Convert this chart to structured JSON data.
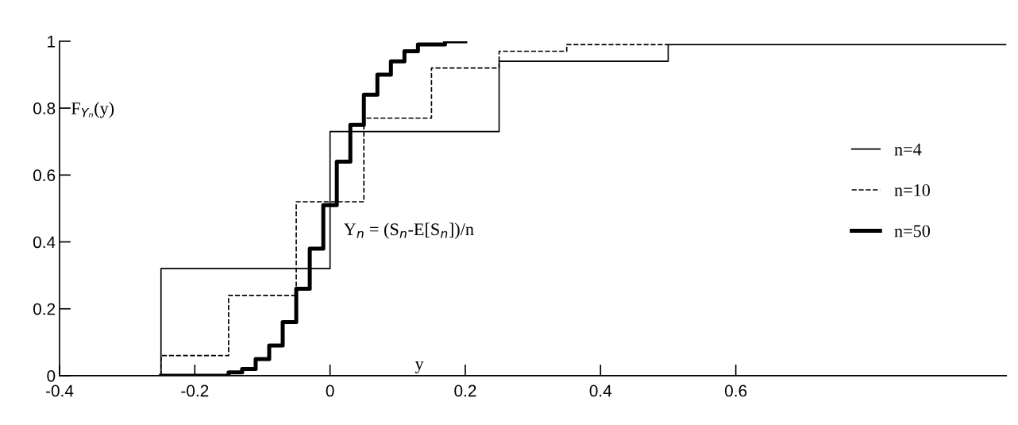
{
  "chart_data": {
    "type": "step",
    "xlabel": "y",
    "ylabel": "F$_{Yₙ}$(y)",
    "annotations": [
      "Y$_{n}$ = (S$_{n}$-E[S$_{n}$])/n"
    ],
    "xlim": [
      -0.4,
      1.0
    ],
    "ylim": [
      0,
      1
    ],
    "xticks": [
      -0.4,
      -0.2,
      0,
      0.2,
      0.4,
      0.6
    ],
    "yticks": [
      0,
      0.2,
      0.4,
      0.6,
      0.8,
      1
    ],
    "grid": false,
    "legend": "right",
    "series": [
      {
        "name": "n=4",
        "color": "#000000",
        "line_style": "solid",
        "x": [
          -0.25,
          -0.25,
          0,
          0.25,
          0.5,
          1.0
        ],
        "values": [
          0,
          0.32,
          0.73,
          0.94,
          0.99,
          0.99
        ]
      },
      {
        "name": "n=10",
        "color": "#000000",
        "line_style": "dashed",
        "x": [
          -0.25,
          -0.25,
          -0.15,
          -0.05,
          0.05,
          0.15,
          0.25,
          0.35,
          0.5
        ],
        "values": [
          0,
          0.06,
          0.24,
          0.52,
          0.77,
          0.92,
          0.97,
          0.99,
          0.99
        ]
      },
      {
        "name": "n=50",
        "color": "#000000",
        "line_style": "solid",
        "x": [
          -0.25,
          -0.23,
          -0.21,
          -0.19,
          -0.17,
          -0.15,
          -0.13,
          -0.11,
          -0.09,
          -0.07,
          -0.05,
          -0.03,
          -0.01,
          0.01,
          0.03,
          0.05,
          0.07,
          0.09,
          0.11,
          0.13,
          0.15,
          0.17,
          0.19,
          0.2
        ],
        "values": [
          0,
          0,
          0,
          0,
          0,
          0.01,
          0.02,
          0.05,
          0.09,
          0.16,
          0.26,
          0.38,
          0.51,
          0.64,
          0.75,
          0.84,
          0.9,
          0.94,
          0.97,
          0.99,
          0.99,
          1,
          1,
          1
        ]
      }
    ]
  }
}
